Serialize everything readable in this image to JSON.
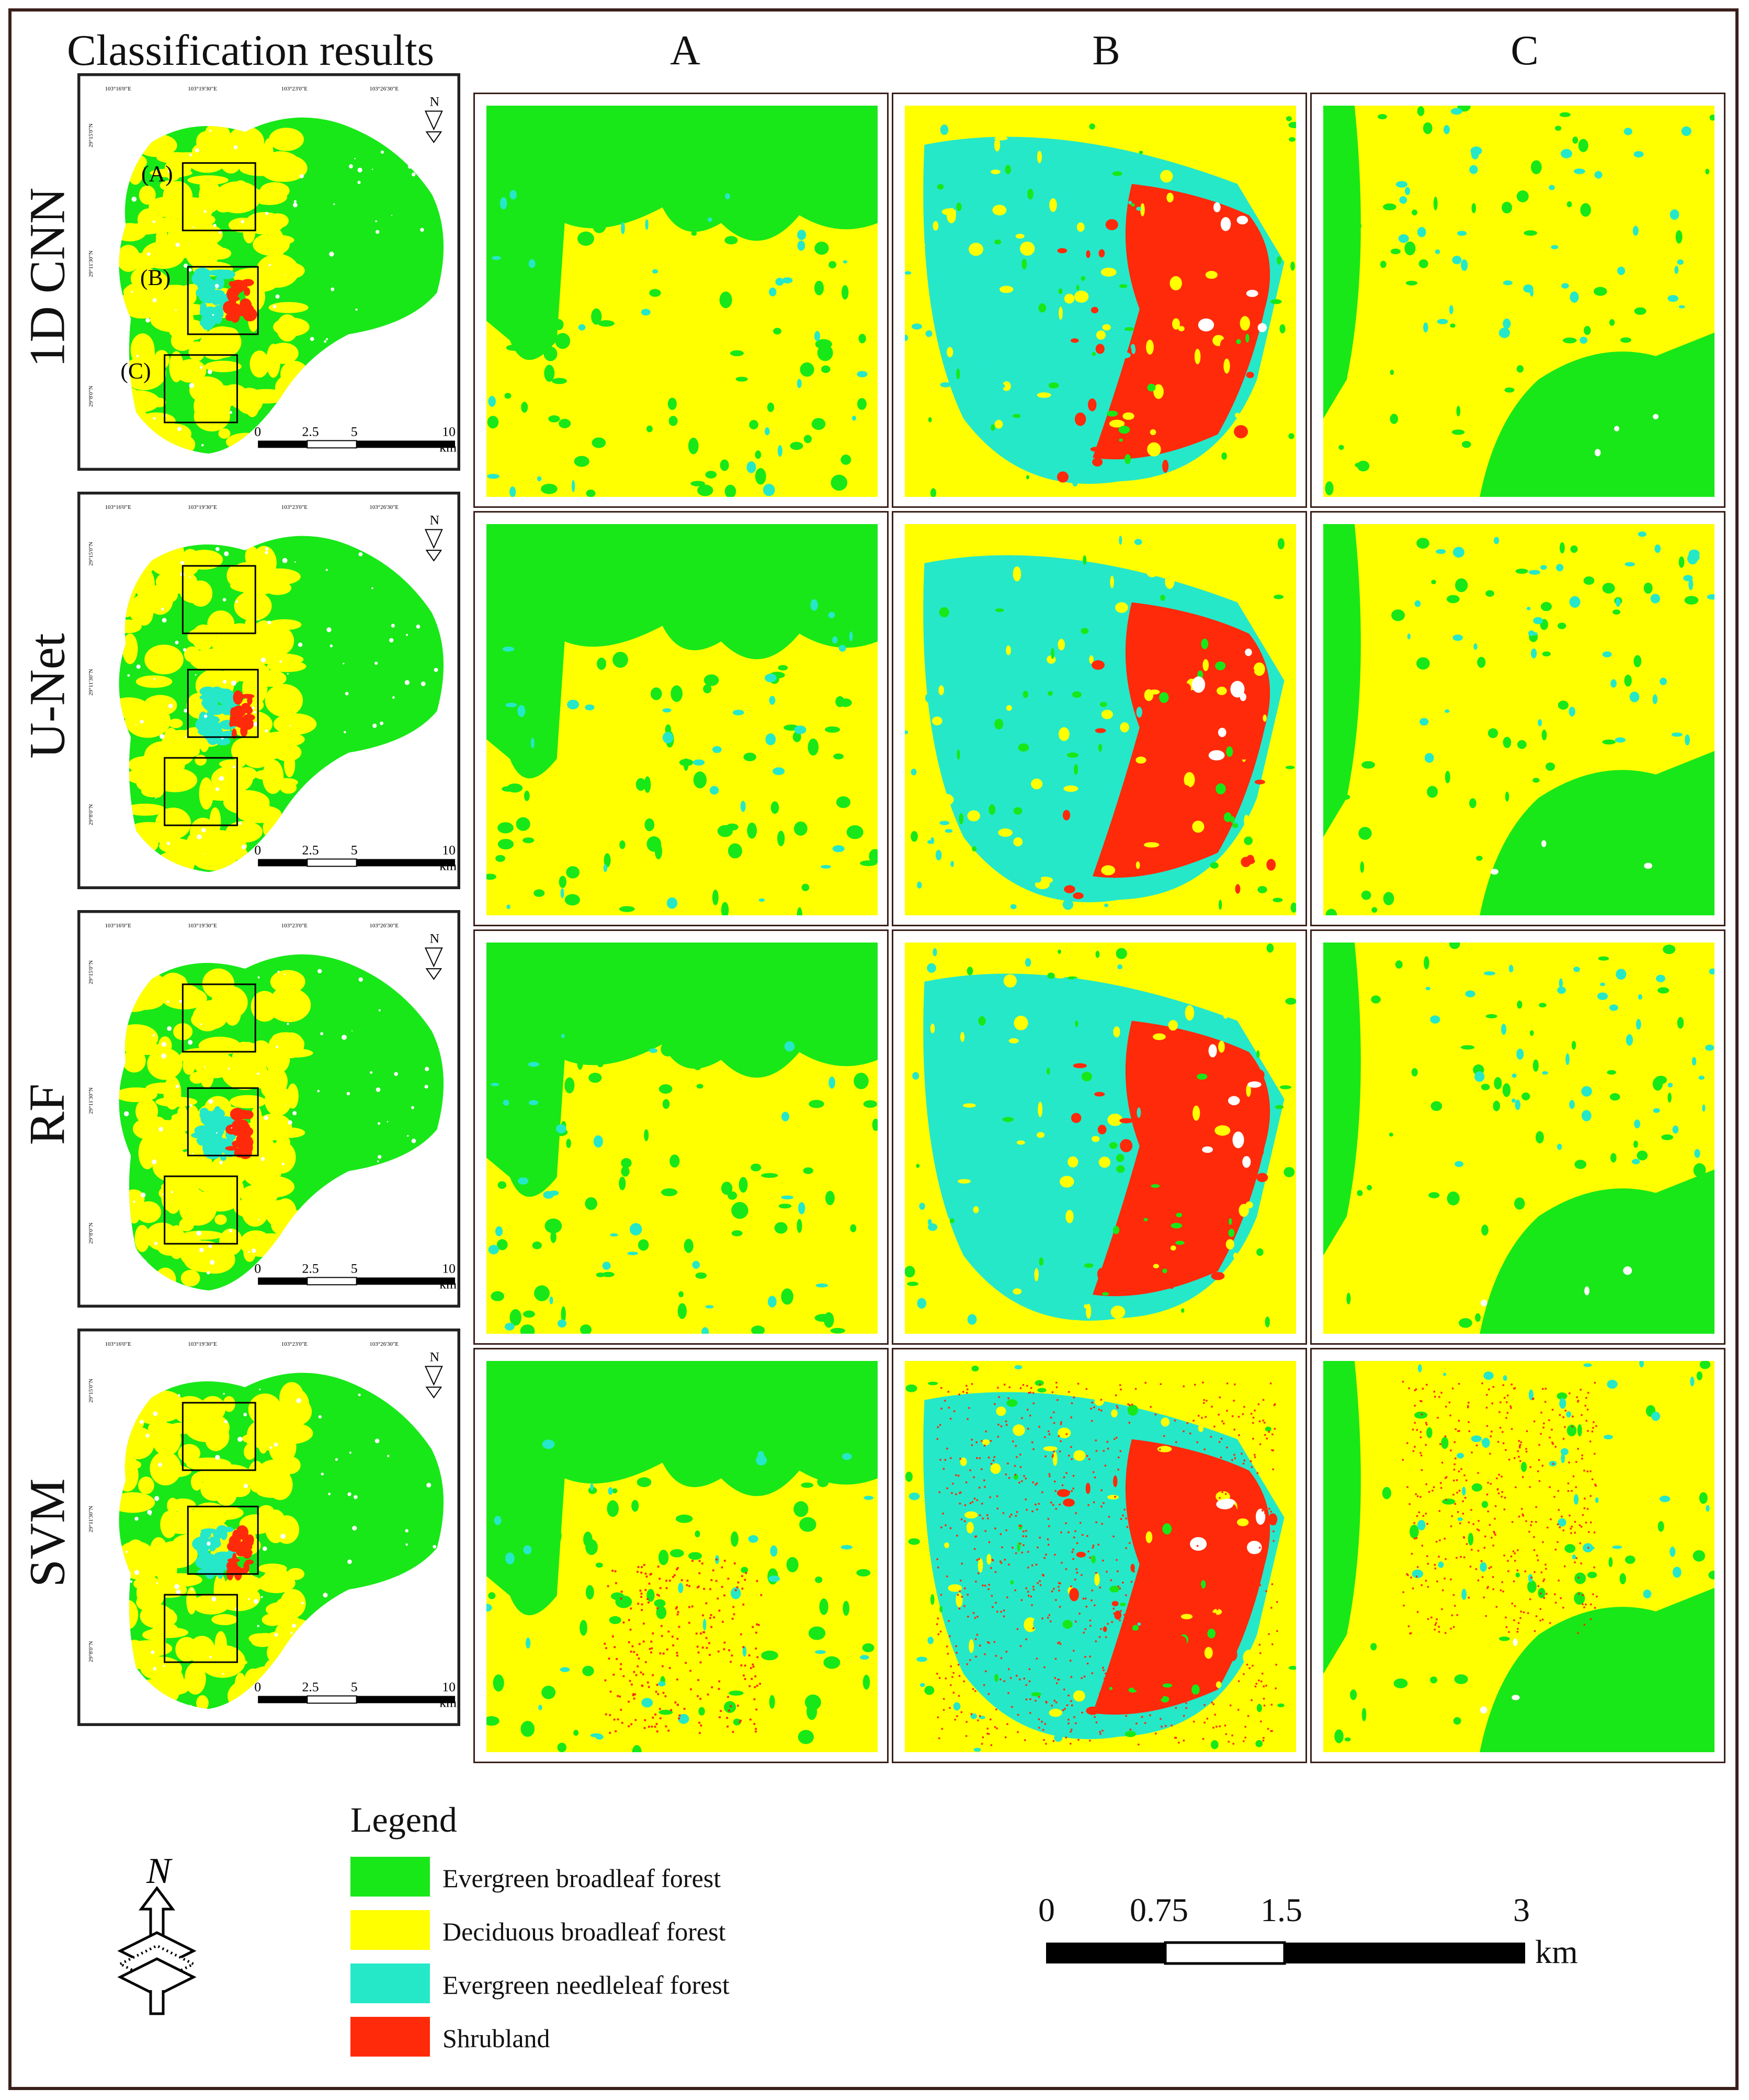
{
  "title": "Classification results",
  "columns": [
    "A",
    "B",
    "C"
  ],
  "rows": [
    "1D CNN",
    "U-Net",
    "RF",
    "SVM"
  ],
  "overview_map": {
    "callouts": [
      "(A)",
      "(B)",
      "(C)"
    ],
    "scale_ticks": [
      "0",
      "2.5",
      "5",
      "10"
    ],
    "scale_unit": "km",
    "top_coords": [
      "103°16'0\"E",
      "103°19'30\"E",
      "103°23'0\"E",
      "103°26'30\"E"
    ],
    "left_coords": [
      "29°15'0\"N",
      "29°11'30\"N",
      "29°8'0\"N"
    ]
  },
  "legend": {
    "title": "Legend",
    "items": [
      {
        "label": "Evergreen broadleaf forest",
        "color": "#18e818"
      },
      {
        "label": "Deciduous broadleaf forest",
        "color": "#ffff00"
      },
      {
        "label": "Evergreen needleleaf forest",
        "color": "#25e8c9"
      },
      {
        "label": "Shrubland",
        "color": "#ff2a0a"
      }
    ]
  },
  "scale_bar": {
    "ticks": [
      "0",
      "0.75",
      "1.5",
      "3"
    ],
    "unit": "km"
  },
  "north_label": "N"
}
